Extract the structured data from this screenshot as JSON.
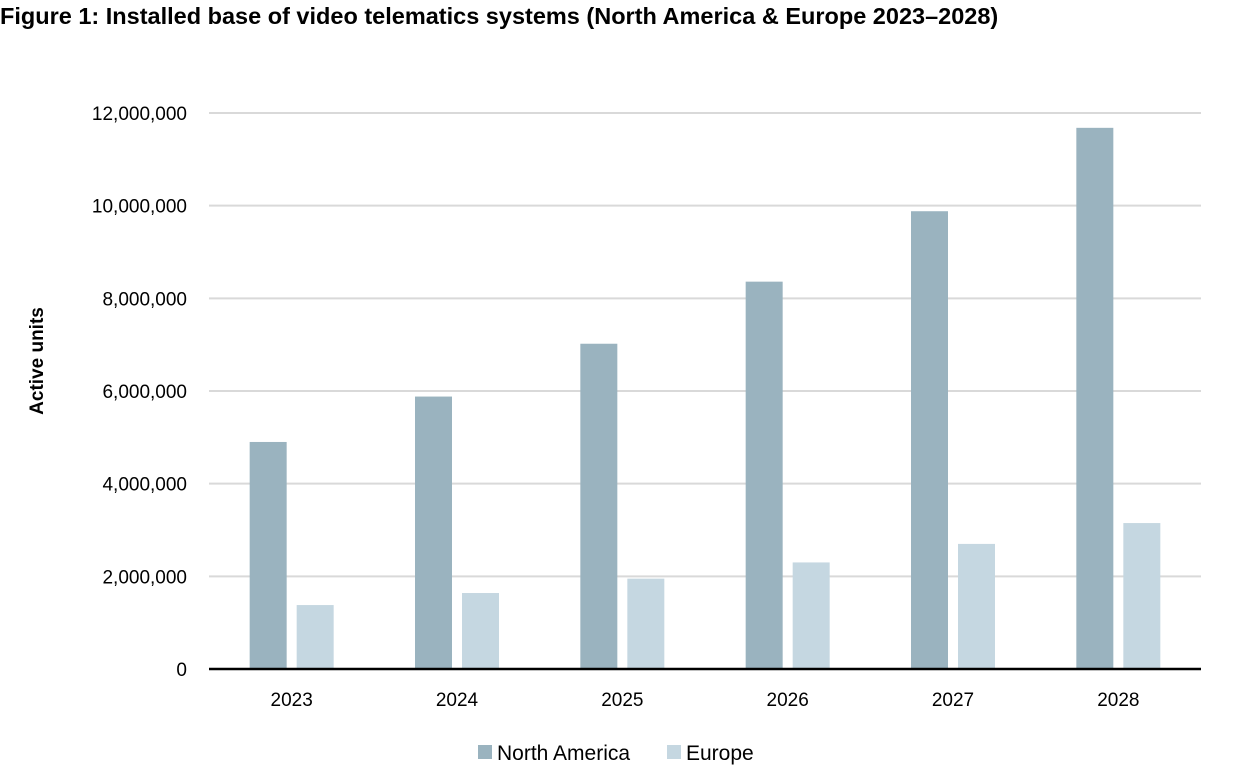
{
  "chart_data": {
    "type": "bar",
    "title": "Figure 1: Installed base of video telematics systems (North America & Europe 2023–2028)",
    "xlabel": "",
    "ylabel": "Active units",
    "categories": [
      "2023",
      "2024",
      "2025",
      "2026",
      "2027",
      "2028"
    ],
    "series": [
      {
        "name": "North America",
        "color": "#9AB3BF",
        "values": [
          4900000,
          5880000,
          7020000,
          8360000,
          9880000,
          11680000
        ]
      },
      {
        "name": "Europe",
        "color": "#C5D7E1",
        "values": [
          1380000,
          1640000,
          1950000,
          2300000,
          2700000,
          3150000
        ]
      }
    ],
    "ylim": [
      0,
      12000000
    ],
    "yticks": [
      0,
      2000000,
      4000000,
      6000000,
      8000000,
      10000000,
      12000000
    ],
    "ytick_labels": [
      "0",
      "2,000,000",
      "4,000,000",
      "6,000,000",
      "8,000,000",
      "10,000,000",
      "12,000,000"
    ],
    "grid": true,
    "gridline_color": "#d9d9d9",
    "legend_position": "bottom"
  }
}
